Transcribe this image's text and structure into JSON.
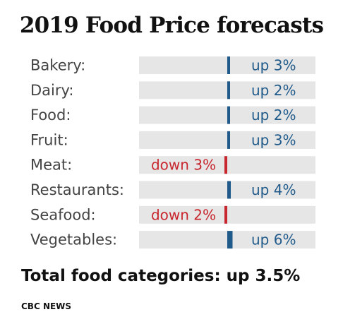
{
  "title": "2019 Food Price forecasts",
  "total": "Total food categories: up 3.5%",
  "source": "CBC NEWS",
  "colors": {
    "up": "#1f5a8a",
    "down": "#c8262e",
    "track": "#e6e6e6",
    "label": "#444444"
  },
  "chart_data": {
    "type": "bar",
    "categories": [
      "Bakery:",
      "Dairy:",
      "Food:",
      "Fruit:",
      "Meat:",
      "Restaurants:",
      "Seafood:",
      "Vegetables:"
    ],
    "values": [
      3,
      2,
      2,
      3,
      -3,
      4,
      -2,
      6
    ],
    "value_labels": [
      "up 3%",
      "up 2%",
      "up 2%",
      "up 3%",
      "down 3%",
      "up 4%",
      "down 2%",
      "up 6%"
    ],
    "xlim": [
      -100,
      100
    ]
  }
}
